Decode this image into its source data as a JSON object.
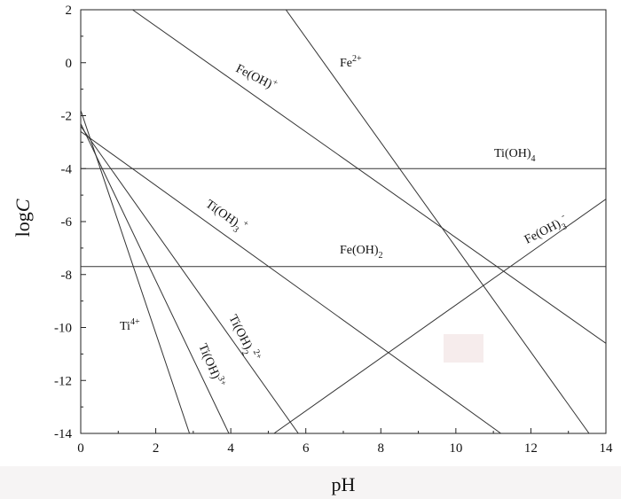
{
  "chart_data": {
    "type": "line",
    "xlabel": "pH",
    "ylabel_prefix": "log",
    "ylabel_var": "C",
    "xlim": [
      0,
      14
    ],
    "ylim": [
      -14,
      2
    ],
    "xticks": [
      "0",
      "2",
      "4",
      "6",
      "8",
      "10",
      "12",
      "14"
    ],
    "yticks": [
      "2",
      "0",
      "-2",
      "-4",
      "-6",
      "-8",
      "-10",
      "-12",
      "-14"
    ],
    "grid": false,
    "legend": "none",
    "series": [
      {
        "name": "Fe²⁺",
        "x": [
          5.47,
          13.55
        ],
        "y": [
          2,
          -14
        ]
      },
      {
        "name": "Fe(OH)⁺",
        "x": [
          1.38,
          14
        ],
        "y": [
          2,
          -10.6
        ]
      },
      {
        "name": "Ti(OH)₄",
        "x": [
          0,
          14
        ],
        "y": [
          -4,
          -4
        ]
      },
      {
        "name": "Fe(OH)₂",
        "x": [
          0,
          14
        ],
        "y": [
          -7.7,
          -7.7
        ]
      },
      {
        "name": "Fe(OH)₃⁻",
        "x": [
          5.15,
          14
        ],
        "y": [
          -14,
          -5.15
        ]
      },
      {
        "name": "Ti(OH)₃⁺",
        "x": [
          0,
          11.2
        ],
        "y": [
          -2.6,
          -14
        ]
      },
      {
        "name": "Ti(OH)₂²⁺",
        "x": [
          0,
          5.8
        ],
        "y": [
          -2.4,
          -14
        ]
      },
      {
        "name": "Ti(OH)³⁺",
        "x": [
          0,
          3.95
        ],
        "y": [
          -2.3,
          -14
        ]
      },
      {
        "name": "Ti⁴⁺",
        "x": [
          0,
          2.9
        ],
        "y": [
          -1.8,
          -14
        ]
      }
    ]
  },
  "labels": {
    "fe2": {
      "base": "Fe",
      "sup": "2+"
    },
    "feoh": {
      "base": "Fe(OH)",
      "sup": "+"
    },
    "tioh4": {
      "base": "Ti(OH)",
      "sub": "4"
    },
    "feoh2": {
      "base": "Fe(OH)",
      "sub": "2"
    },
    "feoh3": {
      "base": "Fe(OH)",
      "sub": "3",
      "sup": "-"
    },
    "tioh3": {
      "base": "Ti(OH)",
      "sub": "3",
      "sup": "+"
    },
    "tioh2": {
      "base": "Ti(OH)",
      "sub": "2",
      "sup": "2+"
    },
    "tioh": {
      "base": "Ti(OH)",
      "sup": "3+"
    },
    "ti4": {
      "base": "Ti",
      "sup": "4+"
    }
  }
}
